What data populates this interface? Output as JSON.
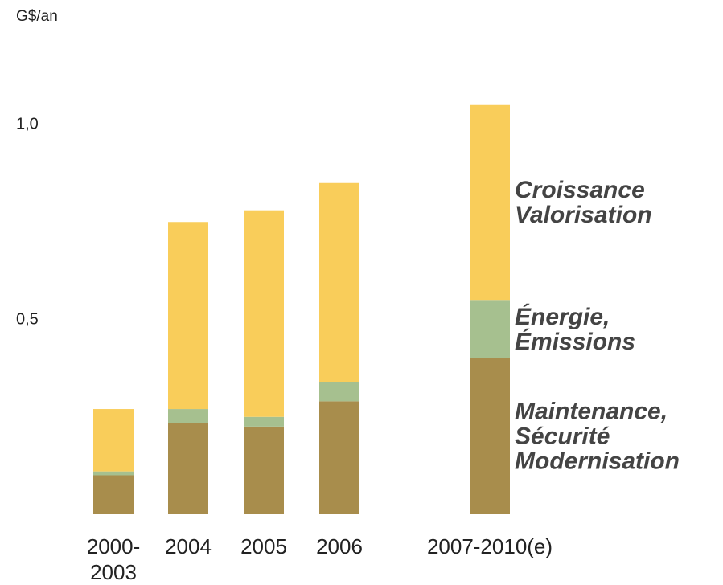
{
  "chart_data": {
    "type": "stacked-bar",
    "ylabel": "G$/an",
    "categories": [
      "2000-\n2003",
      "2004",
      "2005",
      "2006",
      "2007-2010(e)"
    ],
    "series": [
      {
        "name": "Maintenance,\nSécurité\nModernisation",
        "color": "#a88d4c",
        "values": [
          0.1,
          0.235,
          0.225,
          0.29,
          0.4
        ]
      },
      {
        "name": "Énergie,\nÉmissions",
        "color": "#a6c08f",
        "values": [
          0.01,
          0.035,
          0.025,
          0.05,
          0.15
        ]
      },
      {
        "name": "Croissance\nValorisation",
        "color": "#f9cd5a",
        "values": [
          0.16,
          0.48,
          0.53,
          0.51,
          0.5
        ]
      }
    ],
    "ylim": [
      0,
      1.1
    ],
    "yticks": [
      {
        "value": 0.5,
        "label": "0,5"
      },
      {
        "value": 1.0,
        "label": "1,0"
      }
    ]
  }
}
